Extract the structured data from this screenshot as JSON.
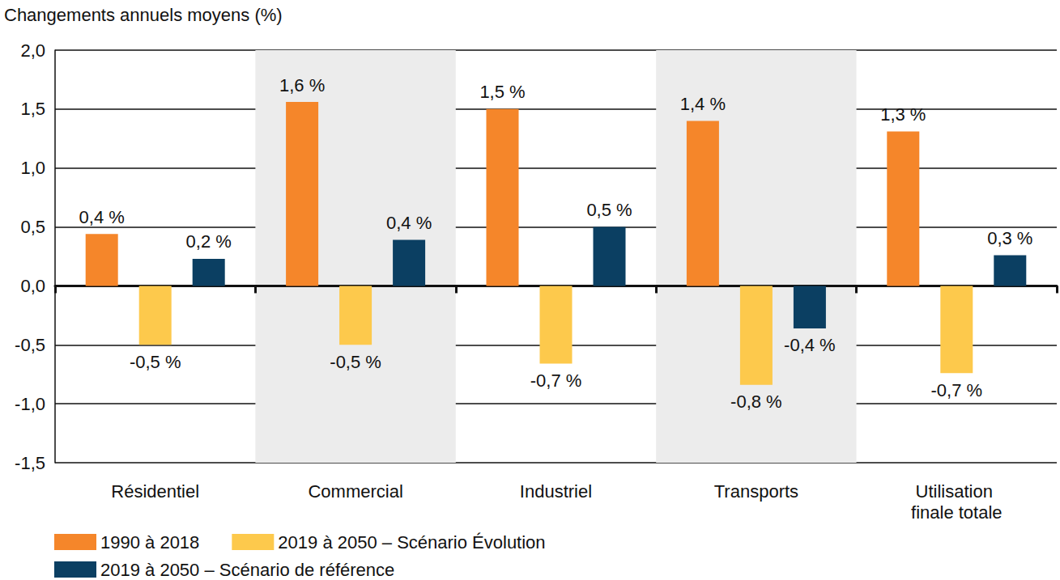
{
  "chart_data": {
    "type": "bar",
    "ylabel": "Changements annuels moyens (%)",
    "categories": [
      "Résidentiel",
      "Commercial",
      "Industriel",
      "Transports",
      "Utilisation finale totale"
    ],
    "series": [
      {
        "name": "1990 à 2018",
        "color": "#f5862a",
        "values": [
          0.44,
          1.56,
          1.5,
          1.4,
          1.31
        ],
        "value_labels": [
          "0,4 %",
          "1,6 %",
          "1,5 %",
          "1,4 %",
          "1,3 %"
        ]
      },
      {
        "name": "2019 à 2050 – Scénario Évolution",
        "color": "#fdc94c",
        "values": [
          -0.5,
          -0.5,
          -0.66,
          -0.84,
          -0.74
        ],
        "value_labels": [
          "-0,5 %",
          "-0,5 %",
          "-0,7 %",
          "-0,8 %",
          "-0,7 %"
        ]
      },
      {
        "name": "2019 à 2050 – Scénario de référence",
        "color": "#0b3f62",
        "values": [
          0.23,
          0.39,
          0.5,
          -0.36,
          0.26
        ],
        "value_labels": [
          "0,2 %",
          "0,4 %",
          "0,5 %",
          "-0,4 %",
          "0,3 %"
        ]
      }
    ],
    "ylim": [
      -1.5,
      2.0
    ],
    "yticks": [
      {
        "value": -1.5,
        "label": "-1,5"
      },
      {
        "value": -1.0,
        "label": "-1,0"
      },
      {
        "value": -0.5,
        "label": "-0,5"
      },
      {
        "value": 0,
        "label": "0,0"
      },
      {
        "value": 0.5,
        "label": "0,5"
      },
      {
        "value": 1.0,
        "label": "1,0"
      },
      {
        "value": 1.5,
        "label": "1,5"
      },
      {
        "value": 2.0,
        "label": "2,0"
      }
    ],
    "grid": true,
    "data_labels": true,
    "legend": "bottom"
  }
}
